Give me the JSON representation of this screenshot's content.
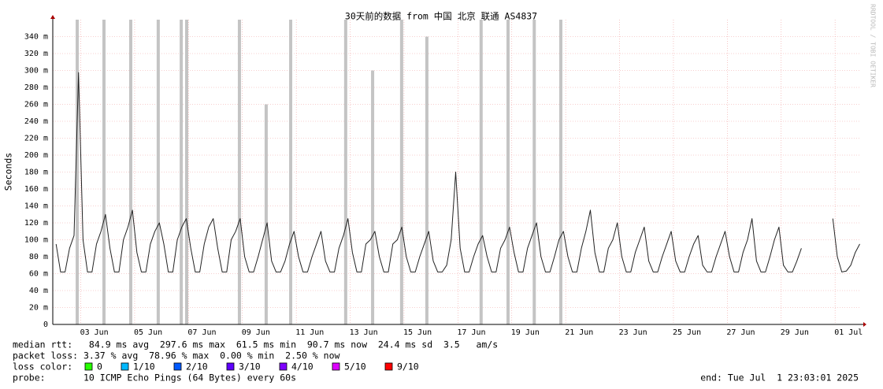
{
  "chart_data": {
    "type": "line",
    "title": "30天前的数据 from 中国 北京 联通 AS4837",
    "y_label": "Seconds",
    "xlim": [
      "06-01 23:03",
      "07-01 23:03"
    ],
    "xticks": [
      {
        "value": "06-03 00:00",
        "label": "03 Jun"
      },
      {
        "value": "06-05 00:00",
        "label": "05 Jun"
      },
      {
        "value": "06-07 00:00",
        "label": "07 Jun"
      },
      {
        "value": "06-09 00:00",
        "label": "09 Jun"
      },
      {
        "value": "06-11 00:00",
        "label": "11 Jun"
      },
      {
        "value": "06-13 00:00",
        "label": "13 Jun"
      },
      {
        "value": "06-15 00:00",
        "label": "15 Jun"
      },
      {
        "value": "06-17 00:00",
        "label": "17 Jun"
      },
      {
        "value": "06-19 00:00",
        "label": "19 Jun"
      },
      {
        "value": "06-21 00:00",
        "label": "21 Jun"
      },
      {
        "value": "06-23 00:00",
        "label": "23 Jun"
      },
      {
        "value": "06-25 00:00",
        "label": "25 Jun"
      },
      {
        "value": "06-27 00:00",
        "label": "27 Jun"
      },
      {
        "value": "06-29 00:00",
        "label": "29 Jun"
      },
      {
        "value": "07-01 00:00",
        "label": "01 Jul"
      }
    ],
    "ylim": [
      0,
      360
    ],
    "yticks": [
      0,
      {
        "value": 20,
        "label": "20 m"
      },
      {
        "value": 40,
        "label": "40 m"
      },
      {
        "value": 60,
        "label": "60 m"
      },
      {
        "value": 80,
        "label": "80 m"
      },
      {
        "value": 100,
        "label": "100 m"
      },
      {
        "value": 120,
        "label": "120 m"
      },
      {
        "value": 140,
        "label": "140 m"
      },
      {
        "value": 160,
        "label": "160 m"
      },
      {
        "value": 180,
        "label": "180 m"
      },
      {
        "value": 200,
        "label": "200 m"
      },
      {
        "value": 220,
        "label": "220 m"
      },
      {
        "value": 240,
        "label": "240 m"
      },
      {
        "value": 260,
        "label": "260 m"
      },
      {
        "value": 280,
        "label": "280 m"
      },
      {
        "value": 300,
        "label": "300 m"
      },
      {
        "value": 320,
        "label": "320 m"
      },
      {
        "value": 340,
        "label": "340 m"
      }
    ],
    "grid": true,
    "smoke": {
      "color": "#c4c4c4",
      "x": [
        "06-02 20:50",
        "06-03 20:40",
        "06-04 20:30",
        "06-05 21:00",
        "06-06 17:30",
        "06-06 22:20",
        "06-08 21:20",
        "06-09 21:10",
        "06-10 19:00",
        "06-12 20:00",
        "06-13 20:00",
        "06-14 21:50",
        "06-15 20:20",
        "06-17 20:40",
        "06-18 20:40",
        "06-19 20:00",
        "06-20 19:40"
      ],
      "values": [
        360,
        360,
        360,
        360,
        360,
        360,
        360,
        260,
        360,
        360,
        300,
        360,
        340,
        360,
        360,
        360,
        360
      ]
    },
    "series": [
      {
        "color": "#222222",
        "x": [
          "06-02 02:00",
          "06-02 06:00",
          "06-02 10:00",
          "06-02 14:00",
          "06-02 18:00",
          "06-02 22:00",
          "06-03 02:00",
          "06-03 06:00",
          "06-03 10:00",
          "06-03 14:00",
          "06-03 18:00",
          "06-03 22:00",
          "06-04 02:00",
          "06-04 06:00",
          "06-04 10:00",
          "06-04 14:00",
          "06-04 18:00",
          "06-04 22:00",
          "06-05 02:00",
          "06-05 06:00",
          "06-05 10:00",
          "06-05 14:00",
          "06-05 18:00",
          "06-05 22:00",
          "06-06 02:00",
          "06-06 06:00",
          "06-06 10:00",
          "06-06 14:00",
          "06-06 18:00",
          "06-06 22:00",
          "06-07 02:00",
          "06-07 06:00",
          "06-07 10:00",
          "06-07 14:00",
          "06-07 18:00",
          "06-07 22:00",
          "06-08 02:00",
          "06-08 06:00",
          "06-08 10:00",
          "06-08 14:00",
          "06-08 18:00",
          "06-08 22:00",
          "06-09 02:00",
          "06-09 06:00",
          "06-09 10:00",
          "06-09 14:00",
          "06-09 18:00",
          "06-09 22:00",
          "06-10 02:00",
          "06-10 06:00",
          "06-10 10:00",
          "06-10 14:00",
          "06-10 18:00",
          "06-10 22:00",
          "06-11 02:00",
          "06-11 06:00",
          "06-11 10:00",
          "06-11 14:00",
          "06-11 18:00",
          "06-11 22:00",
          "06-12 02:00",
          "06-12 06:00",
          "06-12 10:00",
          "06-12 14:00",
          "06-12 18:00",
          "06-12 22:00",
          "06-13 02:00",
          "06-13 06:00",
          "06-13 10:00",
          "06-13 14:00",
          "06-13 18:00",
          "06-13 22:00",
          "06-14 02:00",
          "06-14 06:00",
          "06-14 10:00",
          "06-14 14:00",
          "06-14 18:00",
          "06-14 22:00",
          "06-15 02:00",
          "06-15 06:00",
          "06-15 10:00",
          "06-15 14:00",
          "06-15 18:00",
          "06-15 22:00",
          "06-16 02:00",
          "06-16 06:00",
          "06-16 10:00",
          "06-16 14:00",
          "06-16 18:00",
          "06-16 22:00",
          "06-17 02:00",
          "06-17 06:00",
          "06-17 10:00",
          "06-17 14:00",
          "06-17 18:00",
          "06-17 22:00",
          "06-18 02:00",
          "06-18 06:00",
          "06-18 10:00",
          "06-18 14:00",
          "06-18 18:00",
          "06-18 22:00",
          "06-19 02:00",
          "06-19 06:00",
          "06-19 10:00",
          "06-19 14:00",
          "06-19 18:00",
          "06-19 22:00",
          "06-20 02:00",
          "06-20 06:00",
          "06-20 10:00",
          "06-20 14:00",
          "06-20 18:00",
          "06-20 22:00",
          "06-21 02:00",
          "06-21 06:00",
          "06-21 10:00",
          "06-21 14:00",
          "06-21 18:00",
          "06-21 22:00",
          "06-22 02:00",
          "06-22 06:00",
          "06-22 10:00",
          "06-22 14:00",
          "06-22 18:00",
          "06-22 22:00",
          "06-23 02:00",
          "06-23 06:00",
          "06-23 10:00",
          "06-23 14:00",
          "06-23 18:00",
          "06-23 22:00",
          "06-24 02:00",
          "06-24 06:00",
          "06-24 10:00",
          "06-24 14:00",
          "06-24 18:00",
          "06-24 22:00",
          "06-25 02:00",
          "06-25 06:00",
          "06-25 10:00",
          "06-25 14:00",
          "06-25 18:00",
          "06-25 22:00",
          "06-26 02:00",
          "06-26 06:00",
          "06-26 10:00",
          "06-26 14:00",
          "06-26 18:00",
          "06-26 22:00",
          "06-27 02:00",
          "06-27 06:00",
          "06-27 10:00",
          "06-27 14:00",
          "06-27 18:00",
          "06-27 22:00",
          "06-28 02:00",
          "06-28 06:00",
          "06-28 10:00",
          "06-28 14:00",
          "06-28 18:00",
          "06-28 22:00",
          "06-29 02:00",
          "06-29 06:00",
          "06-29 10:00",
          "06-29 14:00",
          "06-29 18:00",
          "06-29 22:00",
          "06-30 02:00",
          "06-30 06:00",
          "06-30 10:00",
          "06-30 14:00",
          "06-30 18:00",
          "06-30 22:00",
          "07-01 02:00",
          "07-01 06:00",
          "07-01 10:00",
          "07-01 14:00",
          "07-01 18:00",
          "07-01 22:00"
        ],
        "values": [
          95,
          62,
          62,
          90,
          105,
          297.6,
          100,
          62,
          62,
          95,
          110,
          130,
          90,
          62,
          62,
          100,
          115,
          135,
          85,
          62,
          62,
          95,
          110,
          120,
          95,
          62,
          62,
          100,
          115,
          125,
          90,
          62,
          62,
          95,
          115,
          125,
          90,
          62,
          62,
          100,
          110,
          125,
          80,
          62,
          62,
          80,
          100,
          120,
          75,
          62,
          62,
          75,
          95,
          110,
          80,
          62,
          62,
          80,
          95,
          110,
          75,
          62,
          62,
          90,
          105,
          125,
          85,
          62,
          62,
          95,
          100,
          110,
          80,
          62,
          62,
          95,
          100,
          115,
          80,
          62,
          62,
          80,
          95,
          110,
          75,
          62,
          62,
          70,
          100,
          180,
          90,
          62,
          62,
          80,
          95,
          105,
          80,
          62,
          62,
          90,
          100,
          115,
          85,
          62,
          62,
          90,
          105,
          120,
          80,
          62,
          62,
          80,
          100,
          110,
          80,
          62,
          62,
          90,
          110,
          135,
          85,
          62,
          62,
          90,
          100,
          120,
          80,
          62,
          62,
          85,
          100,
          115,
          75,
          62,
          62,
          80,
          95,
          110,
          75,
          62,
          62,
          80,
          95,
          105,
          70,
          62,
          62,
          80,
          95,
          110,
          80,
          62,
          62,
          85,
          100,
          125,
          75,
          62,
          62,
          80,
          100,
          115,
          70,
          62,
          62,
          75,
          90,
          null,
          null,
          null,
          null,
          null,
          null,
          125,
          80,
          62,
          63,
          70,
          85,
          95
        ]
      }
    ]
  },
  "footer": {
    "rtt": "median rtt:   84.9 ms avg  297.6 ms max  61.5 ms min  90.7 ms now  24.4 ms sd  3.5   am/s",
    "loss": "packet loss: 3.37 % avg  78.96 % max  0.00 % min  2.50 % now",
    "loss_color_label": "loss color:",
    "loss_colors": [
      {
        "label": "0",
        "color": "#26ff00"
      },
      {
        "label": "1/10",
        "color": "#00b8ff"
      },
      {
        "label": "2/10",
        "color": "#0059ff"
      },
      {
        "label": "3/10",
        "color": "#5e00ff"
      },
      {
        "label": "4/10",
        "color": "#7e00ff"
      },
      {
        "label": "5/10",
        "color": "#dd00ff"
      },
      {
        "label": "9/10",
        "color": "#ff0000"
      }
    ],
    "probe": "probe:       10 ICMP Echo Pings (64 Bytes) every 60s",
    "end": "end: Tue Jul  1 23:03:01 2025"
  },
  "watermark": "RRDTOOL / TOBI OETIKER"
}
